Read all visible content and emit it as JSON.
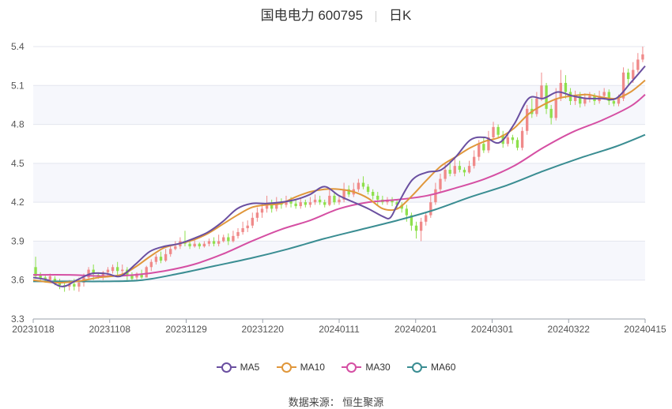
{
  "header": {
    "stock": "国电电力 600795",
    "period": "日K"
  },
  "legend": [
    {
      "name": "MA5",
      "color": "#6a4fa0"
    },
    {
      "name": "MA10",
      "color": "#e0973b"
    },
    {
      "name": "MA30",
      "color": "#d54fa3"
    },
    {
      "name": "MA60",
      "color": "#3a8d92"
    }
  ],
  "source": "数据来源： 恒生聚源",
  "chart_data": {
    "type": "candlestick",
    "x_tick_labels": [
      "20231018",
      "20231108",
      "20231129",
      "20231220",
      "20240111",
      "20240201",
      "20240301",
      "20240322",
      "20240415"
    ],
    "y_ticks": [
      3.3,
      3.6,
      3.9,
      4.2,
      4.5,
      4.8,
      5.1,
      5.4
    ],
    "ylim": [
      3.3,
      5.4
    ],
    "grid": true,
    "up_color": "#f08a8a",
    "down_color": "#8ee04c",
    "series": [
      {
        "name": "MA5",
        "color": "#6a4fa0",
        "values": [
          [
            0,
            3.62
          ],
          [
            4,
            3.6
          ],
          [
            8,
            3.55
          ],
          [
            12,
            3.6
          ],
          [
            16,
            3.65
          ],
          [
            20,
            3.65
          ],
          [
            24,
            3.63
          ],
          [
            28,
            3.72
          ],
          [
            32,
            3.82
          ],
          [
            36,
            3.86
          ],
          [
            40,
            3.88
          ],
          [
            44,
            3.92
          ],
          [
            48,
            3.97
          ],
          [
            52,
            4.05
          ],
          [
            56,
            4.15
          ],
          [
            60,
            4.19
          ],
          [
            64,
            4.19
          ],
          [
            68,
            4.2
          ],
          [
            72,
            4.22
          ],
          [
            76,
            4.26
          ],
          [
            80,
            4.32
          ],
          [
            84,
            4.25
          ],
          [
            88,
            4.2
          ],
          [
            92,
            4.15
          ],
          [
            96,
            4.09
          ],
          [
            98,
            4.08
          ],
          [
            100,
            4.18
          ],
          [
            104,
            4.37
          ],
          [
            108,
            4.43
          ],
          [
            112,
            4.45
          ],
          [
            116,
            4.55
          ],
          [
            120,
            4.68
          ],
          [
            124,
            4.7
          ],
          [
            128,
            4.66
          ],
          [
            132,
            4.8
          ],
          [
            136,
            5.0
          ],
          [
            140,
            5.0
          ],
          [
            144,
            5.05
          ],
          [
            148,
            5.02
          ],
          [
            152,
            5.0
          ],
          [
            156,
            5.0
          ],
          [
            160,
            5.0
          ],
          [
            164,
            5.12
          ],
          [
            168,
            5.25
          ]
        ]
      },
      {
        "name": "MA10",
        "color": "#e0973b",
        "values": [
          [
            0,
            3.6
          ],
          [
            6,
            3.58
          ],
          [
            12,
            3.59
          ],
          [
            18,
            3.62
          ],
          [
            24,
            3.64
          ],
          [
            28,
            3.7
          ],
          [
            32,
            3.78
          ],
          [
            36,
            3.85
          ],
          [
            40,
            3.88
          ],
          [
            44,
            3.91
          ],
          [
            48,
            3.96
          ],
          [
            52,
            4.03
          ],
          [
            56,
            4.1
          ],
          [
            60,
            4.16
          ],
          [
            64,
            4.18
          ],
          [
            68,
            4.19
          ],
          [
            72,
            4.24
          ],
          [
            76,
            4.28
          ],
          [
            80,
            4.3
          ],
          [
            84,
            4.3
          ],
          [
            88,
            4.28
          ],
          [
            92,
            4.23
          ],
          [
            96,
            4.15
          ],
          [
            100,
            4.15
          ],
          [
            104,
            4.25
          ],
          [
            108,
            4.37
          ],
          [
            112,
            4.48
          ],
          [
            116,
            4.55
          ],
          [
            120,
            4.62
          ],
          [
            124,
            4.67
          ],
          [
            128,
            4.7
          ],
          [
            132,
            4.77
          ],
          [
            136,
            4.88
          ],
          [
            140,
            4.95
          ],
          [
            144,
            5.0
          ],
          [
            148,
            5.02
          ],
          [
            152,
            5.03
          ],
          [
            156,
            5.01
          ],
          [
            160,
            5.0
          ],
          [
            164,
            5.05
          ],
          [
            168,
            5.14
          ]
        ]
      },
      {
        "name": "MA30",
        "color": "#d54fa3",
        "values": [
          [
            0,
            3.64
          ],
          [
            10,
            3.64
          ],
          [
            20,
            3.63
          ],
          [
            28,
            3.64
          ],
          [
            36,
            3.67
          ],
          [
            44,
            3.72
          ],
          [
            52,
            3.8
          ],
          [
            60,
            3.9
          ],
          [
            68,
            3.99
          ],
          [
            76,
            4.06
          ],
          [
            84,
            4.15
          ],
          [
            92,
            4.2
          ],
          [
            100,
            4.22
          ],
          [
            108,
            4.25
          ],
          [
            116,
            4.31
          ],
          [
            124,
            4.38
          ],
          [
            132,
            4.48
          ],
          [
            140,
            4.62
          ],
          [
            148,
            4.74
          ],
          [
            156,
            4.83
          ],
          [
            164,
            4.94
          ],
          [
            168,
            5.03
          ]
        ]
      },
      {
        "name": "MA60",
        "color": "#3a8d92",
        "values": [
          [
            0,
            3.59
          ],
          [
            10,
            3.59
          ],
          [
            20,
            3.59
          ],
          [
            30,
            3.6
          ],
          [
            40,
            3.65
          ],
          [
            50,
            3.71
          ],
          [
            60,
            3.77
          ],
          [
            70,
            3.84
          ],
          [
            80,
            3.92
          ],
          [
            90,
            3.99
          ],
          [
            100,
            4.06
          ],
          [
            110,
            4.14
          ],
          [
            120,
            4.24
          ],
          [
            130,
            4.33
          ],
          [
            140,
            4.44
          ],
          [
            150,
            4.54
          ],
          [
            160,
            4.63
          ],
          [
            168,
            4.72
          ]
        ]
      }
    ],
    "candles": [
      [
        3.7,
        3.63,
        3.78,
        3.61
      ],
      [
        3.64,
        3.61,
        3.66,
        3.59
      ],
      [
        3.62,
        3.6,
        3.64,
        3.58
      ],
      [
        3.6,
        3.63,
        3.65,
        3.58
      ],
      [
        3.61,
        3.58,
        3.63,
        3.56
      ],
      [
        3.58,
        3.56,
        3.61,
        3.53
      ],
      [
        3.56,
        3.55,
        3.58,
        3.51
      ],
      [
        3.55,
        3.57,
        3.6,
        3.52
      ],
      [
        3.57,
        3.55,
        3.61,
        3.52
      ],
      [
        3.55,
        3.58,
        3.62,
        3.51
      ],
      [
        3.58,
        3.62,
        3.65,
        3.55
      ],
      [
        3.62,
        3.68,
        3.7,
        3.6
      ],
      [
        3.68,
        3.65,
        3.72,
        3.6
      ],
      [
        3.64,
        3.63,
        3.66,
        3.61
      ],
      [
        3.63,
        3.66,
        3.67,
        3.6
      ],
      [
        3.66,
        3.68,
        3.7,
        3.62
      ],
      [
        3.67,
        3.7,
        3.72,
        3.65
      ],
      [
        3.7,
        3.67,
        3.74,
        3.64
      ],
      [
        3.67,
        3.68,
        3.72,
        3.63
      ],
      [
        3.68,
        3.64,
        3.7,
        3.6
      ],
      [
        3.64,
        3.61,
        3.66,
        3.59
      ],
      [
        3.62,
        3.65,
        3.66,
        3.6
      ],
      [
        3.65,
        3.62,
        3.68,
        3.61
      ],
      [
        3.62,
        3.7,
        3.71,
        3.62
      ],
      [
        3.7,
        3.74,
        3.76,
        3.67
      ],
      [
        3.74,
        3.78,
        3.8,
        3.72
      ],
      [
        3.78,
        3.75,
        3.82,
        3.73
      ],
      [
        3.75,
        3.8,
        3.84,
        3.74
      ],
      [
        3.8,
        3.84,
        3.86,
        3.78
      ],
      [
        3.84,
        3.86,
        3.9,
        3.83
      ],
      [
        3.86,
        3.9,
        3.93,
        3.84
      ],
      [
        3.9,
        3.88,
        3.98,
        3.86
      ],
      [
        3.88,
        3.86,
        3.9,
        3.84
      ],
      [
        3.86,
        3.88,
        3.91,
        3.85
      ],
      [
        3.88,
        3.86,
        3.89,
        3.84
      ],
      [
        3.86,
        3.88,
        3.9,
        3.85
      ],
      [
        3.88,
        3.9,
        3.92,
        3.86
      ],
      [
        3.9,
        3.88,
        3.93,
        3.86
      ],
      [
        3.88,
        3.9,
        3.95,
        3.86
      ],
      [
        3.9,
        3.93,
        3.95,
        3.89
      ],
      [
        3.93,
        3.9,
        3.96,
        3.87
      ],
      [
        3.9,
        3.94,
        3.98,
        3.89
      ],
      [
        3.94,
        3.97,
        4.0,
        3.92
      ],
      [
        3.97,
        4.0,
        4.05,
        3.95
      ],
      [
        4.0,
        4.02,
        4.06,
        3.97
      ],
      [
        4.02,
        4.08,
        4.12,
        4.0
      ],
      [
        4.08,
        4.12,
        4.16,
        4.05
      ],
      [
        4.12,
        4.15,
        4.19,
        4.08
      ],
      [
        4.15,
        4.18,
        4.25,
        4.12
      ],
      [
        4.18,
        4.15,
        4.22,
        4.12
      ],
      [
        4.15,
        4.2,
        4.24,
        4.13
      ],
      [
        4.2,
        4.18,
        4.23,
        4.15
      ],
      [
        4.18,
        4.21,
        4.25,
        4.16
      ],
      [
        4.21,
        4.19,
        4.24,
        4.16
      ],
      [
        4.19,
        4.17,
        4.22,
        4.15
      ],
      [
        4.17,
        4.2,
        4.23,
        4.15
      ],
      [
        4.2,
        4.18,
        4.22,
        4.16
      ],
      [
        4.18,
        4.2,
        4.24,
        4.16
      ],
      [
        4.2,
        4.22,
        4.26,
        4.18
      ],
      [
        4.22,
        4.2,
        4.25,
        4.18
      ],
      [
        4.2,
        4.18,
        4.22,
        4.16
      ],
      [
        4.18,
        4.25,
        4.3,
        4.17
      ],
      [
        4.25,
        4.2,
        4.28,
        4.18
      ],
      [
        4.2,
        4.22,
        4.25,
        4.18
      ],
      [
        4.22,
        4.3,
        4.35,
        4.2
      ],
      [
        4.3,
        4.26,
        4.33,
        4.24
      ],
      [
        4.26,
        4.3,
        4.35,
        4.24
      ],
      [
        4.3,
        4.35,
        4.38,
        4.28
      ],
      [
        4.35,
        4.32,
        4.4,
        4.3
      ],
      [
        4.32,
        4.28,
        4.34,
        4.26
      ],
      [
        4.28,
        4.25,
        4.3,
        4.22
      ],
      [
        4.25,
        4.22,
        4.28,
        4.18
      ],
      [
        4.22,
        4.2,
        4.25,
        4.18
      ],
      [
        4.2,
        4.22,
        4.24,
        4.18
      ],
      [
        4.22,
        4.2,
        4.24,
        4.17
      ],
      [
        4.2,
        4.18,
        4.22,
        4.15
      ],
      [
        4.18,
        4.15,
        4.2,
        4.12
      ],
      [
        4.15,
        4.1,
        4.18,
        4.05
      ],
      [
        4.1,
        4.02,
        4.12,
        3.98
      ],
      [
        4.02,
        3.98,
        4.05,
        3.92
      ],
      [
        3.98,
        4.05,
        4.08,
        3.9
      ],
      [
        4.05,
        4.1,
        4.12,
        4.02
      ],
      [
        4.1,
        4.2,
        4.25,
        4.08
      ],
      [
        4.2,
        4.3,
        4.35,
        4.18
      ],
      [
        4.3,
        4.38,
        4.42,
        4.28
      ],
      [
        4.38,
        4.45,
        4.5,
        4.36
      ],
      [
        4.45,
        4.42,
        4.52,
        4.4
      ],
      [
        4.42,
        4.48,
        4.54,
        4.4
      ],
      [
        4.48,
        4.45,
        4.52,
        4.43
      ],
      [
        4.45,
        4.43,
        4.47,
        4.4
      ],
      [
        4.43,
        4.48,
        4.52,
        4.42
      ],
      [
        4.48,
        4.55,
        4.6,
        4.46
      ],
      [
        4.55,
        4.65,
        4.68,
        4.52
      ],
      [
        4.65,
        4.6,
        4.7,
        4.58
      ],
      [
        4.6,
        4.7,
        4.75,
        4.58
      ],
      [
        4.7,
        4.78,
        4.82,
        4.68
      ],
      [
        4.78,
        4.72,
        4.8,
        4.7
      ],
      [
        4.72,
        4.65,
        4.75,
        4.62
      ],
      [
        4.65,
        4.7,
        4.74,
        4.63
      ],
      [
        4.7,
        4.68,
        4.72,
        4.65
      ],
      [
        4.68,
        4.62,
        4.7,
        4.6
      ],
      [
        4.62,
        4.75,
        4.78,
        4.6
      ],
      [
        4.75,
        4.92,
        4.95,
        4.72
      ],
      [
        4.92,
        4.88,
        5.0,
        4.85
      ],
      [
        4.88,
        5.0,
        5.05,
        4.86
      ],
      [
        5.0,
        5.1,
        5.2,
        4.98
      ],
      [
        5.1,
        4.92,
        5.12,
        4.88
      ],
      [
        4.92,
        4.85,
        4.95,
        4.8
      ],
      [
        4.85,
        5.0,
        5.08,
        4.83
      ],
      [
        5.0,
        5.12,
        5.22,
        4.98
      ],
      [
        5.12,
        5.05,
        5.18,
        5.0
      ],
      [
        5.05,
        4.98,
        5.08,
        4.95
      ],
      [
        4.98,
        5.02,
        5.06,
        4.95
      ],
      [
        5.02,
        4.96,
        5.05,
        4.93
      ],
      [
        4.96,
        5.0,
        5.04,
        4.94
      ],
      [
        5.0,
        5.02,
        5.05,
        4.97
      ],
      [
        5.02,
        4.98,
        5.04,
        4.95
      ],
      [
        4.98,
        5.02,
        5.06,
        4.96
      ],
      [
        5.02,
        5.05,
        5.08,
        4.99
      ],
      [
        5.05,
        4.98,
        5.07,
        4.95
      ],
      [
        4.98,
        4.96,
        5.0,
        4.94
      ],
      [
        4.96,
        5.0,
        5.03,
        4.94
      ],
      [
        5.0,
        5.2,
        5.24,
        4.98
      ],
      [
        5.2,
        5.15,
        5.23,
        5.1
      ],
      [
        5.15,
        5.22,
        5.28,
        5.12
      ],
      [
        5.22,
        5.3,
        5.35,
        5.2
      ],
      [
        5.3,
        5.34,
        5.4,
        5.28
      ]
    ]
  }
}
